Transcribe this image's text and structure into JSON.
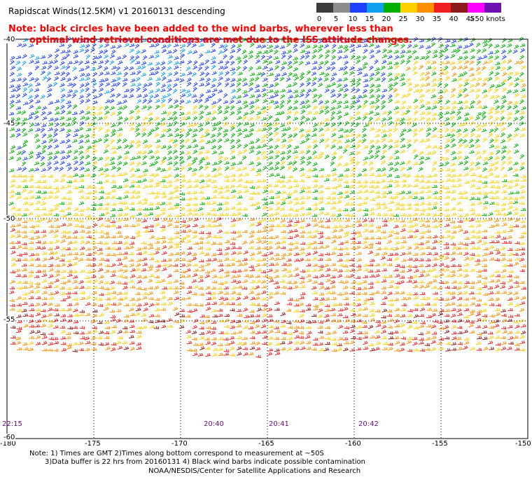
{
  "header": {
    "title": "Rapidscat Winds(12.5KM) v1 20160131 descending",
    "note_line1": "Note: black circles have been added to the wind barbs, wherever less than",
    "note_line2": "optimal wind retrieval conditions are met due to the ISS attitude changes."
  },
  "legend": {
    "swatches": [
      {
        "color": "#3c3c3c",
        "label": "0"
      },
      {
        "color": "#8c8c8c",
        "label": "5"
      },
      {
        "color": "#2040ff",
        "label": "10"
      },
      {
        "color": "#10a0f0",
        "label": "15"
      },
      {
        "color": "#00b000",
        "label": "20"
      },
      {
        "color": "#ffd000",
        "label": "25"
      },
      {
        "color": "#ff9000",
        "label": "30"
      },
      {
        "color": "#f02020",
        "label": "35"
      },
      {
        "color": "#8b1a1a",
        "label": "40"
      },
      {
        "color": "#ff00ff",
        "label": "45"
      },
      {
        "color": "#7010b0",
        "label": ">50 knots"
      }
    ]
  },
  "map": {
    "lon_labels": [
      "-180",
      "-175",
      "-170",
      "-165",
      "-160",
      "-155",
      "-150"
    ],
    "lat_labels": [
      "-40",
      "-45",
      "-50",
      "-55",
      "-60"
    ],
    "pass_times": [
      "22:15",
      "20:40",
      "20:41",
      "20:42"
    ]
  },
  "footer": {
    "line1": "Note: 1) Times are GMT 2)Times along bottom correspond to measurement at ~50S",
    "line2": "3)Data buffer is 22 hrs from 20160131 4) Black wind barbs indicate possible contamination",
    "line3": "NOAA/NESDIS/Center for Satellite Applications and Research"
  }
}
